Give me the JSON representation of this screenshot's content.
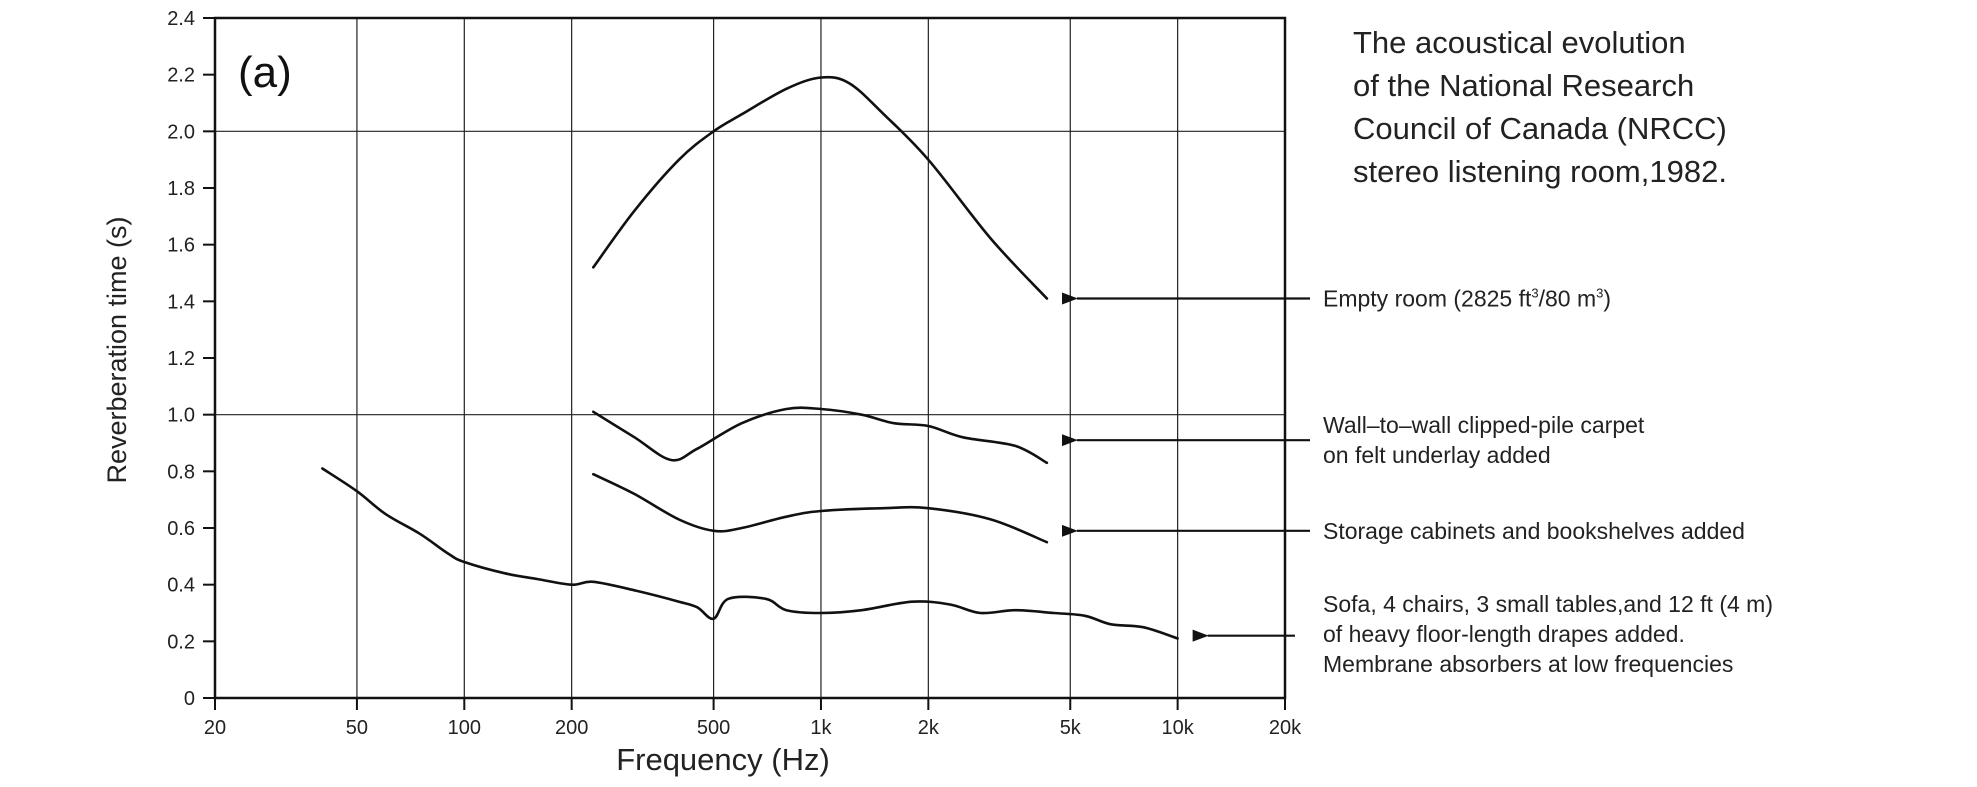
{
  "chart_data": {
    "type": "line",
    "panel_label": "(a)",
    "title_lines": [
      "The acoustical evolution",
      "of the National Research",
      "Council of Canada (NRCC)",
      "stereo listening room,1982."
    ],
    "xlabel": "Frequency (Hz)",
    "ylabel": "Reverberation time (s)",
    "x_scale": "log",
    "xlim": [
      20,
      20000
    ],
    "ylim": [
      0,
      2.4
    ],
    "x_ticks": [
      {
        "value": 20,
        "label": "20"
      },
      {
        "value": 50,
        "label": "50"
      },
      {
        "value": 100,
        "label": "100"
      },
      {
        "value": 200,
        "label": "200"
      },
      {
        "value": 500,
        "label": "500"
      },
      {
        "value": 1000,
        "label": "1k"
      },
      {
        "value": 2000,
        "label": "2k"
      },
      {
        "value": 5000,
        "label": "5k"
      },
      {
        "value": 10000,
        "label": "10k"
      },
      {
        "value": 20000,
        "label": "20k"
      }
    ],
    "y_ticks": [
      {
        "value": 0,
        "label": "0"
      },
      {
        "value": 0.2,
        "label": "0.2"
      },
      {
        "value": 0.4,
        "label": "0.4"
      },
      {
        "value": 0.6,
        "label": "0.6"
      },
      {
        "value": 0.8,
        "label": "0.8"
      },
      {
        "value": 1.0,
        "label": "1.0"
      },
      {
        "value": 1.2,
        "label": "1.2"
      },
      {
        "value": 1.4,
        "label": "1.4"
      },
      {
        "value": 1.6,
        "label": "1.6"
      },
      {
        "value": 1.8,
        "label": "1.8"
      },
      {
        "value": 2.0,
        "label": "2.0"
      },
      {
        "value": 2.2,
        "label": "2.2"
      },
      {
        "value": 2.4,
        "label": "2.4"
      }
    ],
    "x_gridlines": [
      50,
      100,
      200,
      500,
      1000,
      2000,
      5000,
      10000
    ],
    "y_gridlines": [
      1.0,
      2.0
    ],
    "series": [
      {
        "x": [
          230,
          300,
          400,
          500,
          600,
          800,
          1000,
          1200,
          1500,
          2000,
          3000,
          4300
        ],
        "y": [
          1.52,
          1.72,
          1.9,
          2.0,
          2.06,
          2.15,
          2.19,
          2.17,
          2.06,
          1.9,
          1.62,
          1.41
        ]
      },
      {
        "x": [
          230,
          300,
          380,
          450,
          600,
          800,
          1000,
          1300,
          1600,
          2000,
          2500,
          3500,
          4300
        ],
        "y": [
          1.01,
          0.92,
          0.84,
          0.88,
          0.97,
          1.02,
          1.02,
          1.0,
          0.97,
          0.96,
          0.92,
          0.89,
          0.83
        ]
      },
      {
        "x": [
          230,
          300,
          400,
          500,
          600,
          800,
          1000,
          1500,
          2000,
          3000,
          4300
        ],
        "y": [
          0.79,
          0.72,
          0.63,
          0.59,
          0.6,
          0.64,
          0.66,
          0.67,
          0.67,
          0.63,
          0.55
        ]
      },
      {
        "x": [
          40,
          50,
          60,
          75,
          90,
          100,
          130,
          160,
          200,
          230,
          300,
          400,
          450,
          500,
          550,
          700,
          800,
          1000,
          1300,
          1800,
          2300,
          2800,
          3500,
          4500,
          5500,
          6500,
          8000,
          10000
        ],
        "y": [
          0.81,
          0.73,
          0.65,
          0.58,
          0.51,
          0.48,
          0.44,
          0.42,
          0.4,
          0.41,
          0.38,
          0.34,
          0.32,
          0.28,
          0.35,
          0.35,
          0.31,
          0.3,
          0.31,
          0.34,
          0.33,
          0.3,
          0.31,
          0.3,
          0.29,
          0.26,
          0.25,
          0.21
        ]
      }
    ],
    "annotations": [
      {
        "lines": [
          "Empty room  (2825 ft",
          "3",
          "/80 m",
          "3",
          ")"
        ],
        "arrow_to": {
          "x": 4300,
          "y": 1.41
        }
      },
      {
        "lines": [
          "Wall–to–wall clipped-pile carpet",
          "on felt underlay added"
        ],
        "arrow_to": {
          "x": 4300,
          "y": 0.91
        }
      },
      {
        "lines": [
          "Storage cabinets and bookshelves added"
        ],
        "arrow_to": {
          "x": 4300,
          "y": 0.59
        }
      },
      {
        "lines": [
          "Sofa, 4 chairs, 3 small tables,and 12 ft (4 m)",
          "of heavy floor-length drapes added.",
          "Membrane absorbers at low frequencies"
        ],
        "arrow_to": {
          "x": 10000,
          "y": 0.22
        }
      }
    ]
  }
}
